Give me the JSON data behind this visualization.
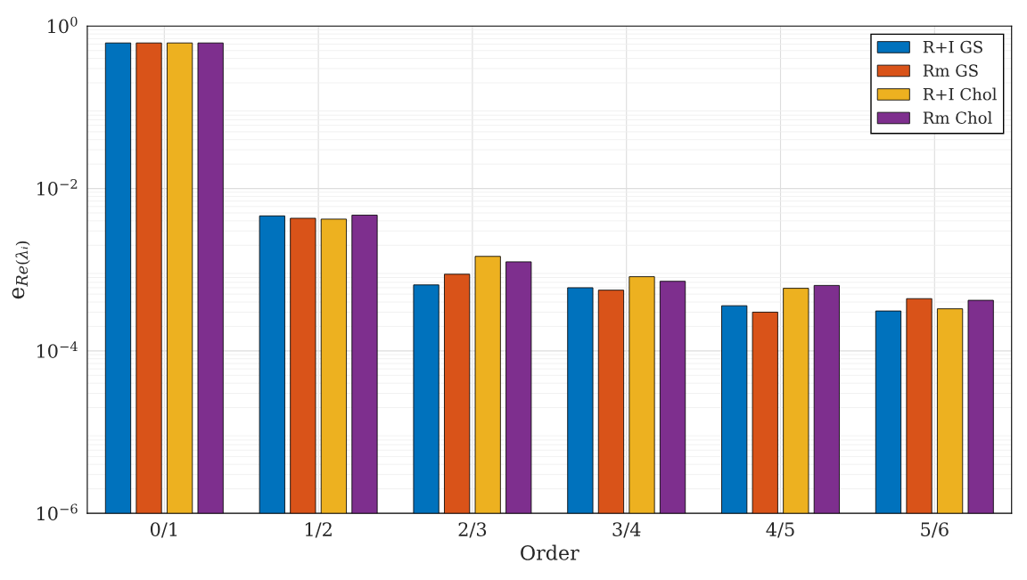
{
  "chart_data": {
    "type": "bar",
    "xlabel": "Order",
    "ylabel": "e$_{Re(λᵢ)}$",
    "categories": [
      "0/1",
      "1/2",
      "2/3",
      "3/4",
      "4/5",
      "5/6"
    ],
    "series": [
      {
        "name": "R+I GS",
        "color": "#0072bd",
        "values": [
          0.62,
          0.0046,
          0.00065,
          0.0006,
          0.00036,
          0.00031
        ]
      },
      {
        "name": "Rm GS",
        "color": "#d95319",
        "values": [
          0.62,
          0.0043,
          0.00088,
          0.00056,
          0.0003,
          0.00044
        ]
      },
      {
        "name": "R+I Chol",
        "color": "#edb120",
        "values": [
          0.62,
          0.0042,
          0.00146,
          0.00082,
          0.00059,
          0.00033
        ]
      },
      {
        "name": "Rm Chol",
        "color": "#7e2f8e",
        "values": [
          0.62,
          0.0047,
          0.00125,
          0.00072,
          0.00064,
          0.00042
        ]
      }
    ],
    "log": true,
    "ylim": [
      1e-06,
      1
    ],
    "yticks": [
      {
        "value": 1e-06,
        "label": "10$^{−6}$"
      },
      {
        "value": 0.0001,
        "label": "10$^{−4}$"
      },
      {
        "value": 0.01,
        "label": "10$^{−2}$"
      },
      {
        "value": 1,
        "label": "10$^{0}$"
      }
    ],
    "grid": true,
    "legend": "top right"
  }
}
